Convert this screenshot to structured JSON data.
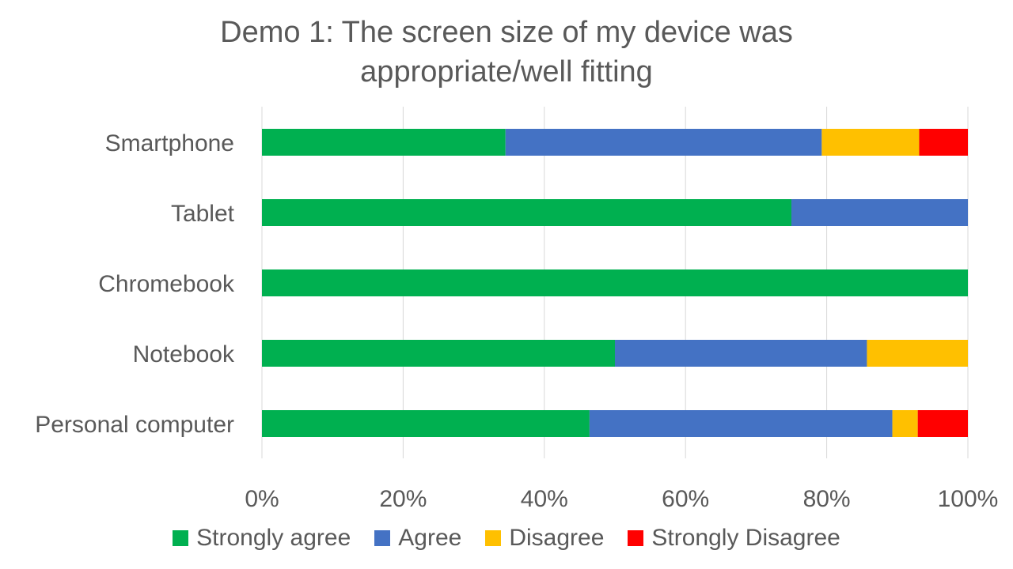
{
  "chart_data": {
    "type": "bar",
    "orientation": "horizontal",
    "stacked": "percent",
    "title_lines": [
      "Demo 1: The screen size of my device was",
      "appropriate/well fitting"
    ],
    "categories": [
      "Smartphone",
      "Tablet",
      "Chromebook",
      "Notebook",
      "Personal computer"
    ],
    "series": [
      {
        "name": "Strongly agree",
        "color": "#00B050",
        "values": [
          34.5,
          75,
          100,
          50,
          46.4
        ]
      },
      {
        "name": "Agree",
        "color": "#4472C4",
        "values": [
          44.8,
          25,
          0,
          35.7,
          42.9
        ]
      },
      {
        "name": "Disagree",
        "color": "#FFC000",
        "values": [
          13.8,
          0,
          0,
          14.3,
          3.6
        ]
      },
      {
        "name": "Strongly Disagree",
        "color": "#FF0000",
        "values": [
          6.9,
          0,
          0,
          0,
          7.1
        ]
      }
    ],
    "x_ticks": [
      "0%",
      "20%",
      "40%",
      "60%",
      "80%",
      "100%"
    ],
    "xlim": [
      0,
      100
    ],
    "grid": true,
    "legend_position": "bottom"
  }
}
